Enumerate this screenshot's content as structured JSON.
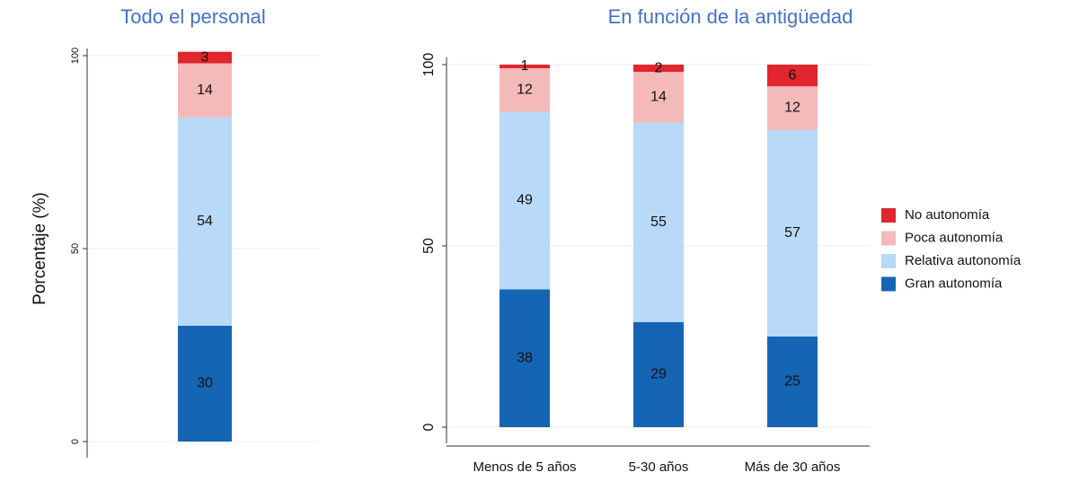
{
  "chart_data": [
    {
      "type": "stacked_bar",
      "title": "Todo el personal",
      "y_label": "Porcentaje (%)",
      "categories": [
        null
      ],
      "series": [
        {
          "name": "Gran autonomía",
          "color": "#1565b4",
          "values": [
            30
          ]
        },
        {
          "name": "Relativa autonomía",
          "color": "#b8d9f7",
          "values": [
            54
          ]
        },
        {
          "name": "Poca autonomía",
          "color": "#f4b9b9",
          "values": [
            14
          ]
        },
        {
          "name": "No autonomía",
          "color": "#e0262f",
          "values": [
            3
          ]
        }
      ],
      "ylim": [
        0,
        100
      ],
      "yticks": [
        0,
        50,
        100
      ],
      "grid": true
    },
    {
      "type": "stacked_bar",
      "title": "En función de la antigüedad",
      "categories": [
        "Menos de 5 años",
        "5-30 años",
        "Más de 30 años"
      ],
      "series": [
        {
          "name": "Gran autonomía",
          "color": "#1565b4",
          "values": [
            38,
            29,
            25
          ]
        },
        {
          "name": "Relativa autonomía",
          "color": "#b8d9f7",
          "values": [
            49,
            55,
            57
          ]
        },
        {
          "name": "Poca autonomía",
          "color": "#f4b9b9",
          "values": [
            12,
            14,
            12
          ]
        },
        {
          "name": "No autonomía",
          "color": "#e0262f",
          "values": [
            1,
            2,
            6
          ]
        }
      ],
      "ylim": [
        0,
        100
      ],
      "yticks": [
        0,
        50,
        100
      ],
      "grid": true,
      "legend": "right"
    }
  ]
}
